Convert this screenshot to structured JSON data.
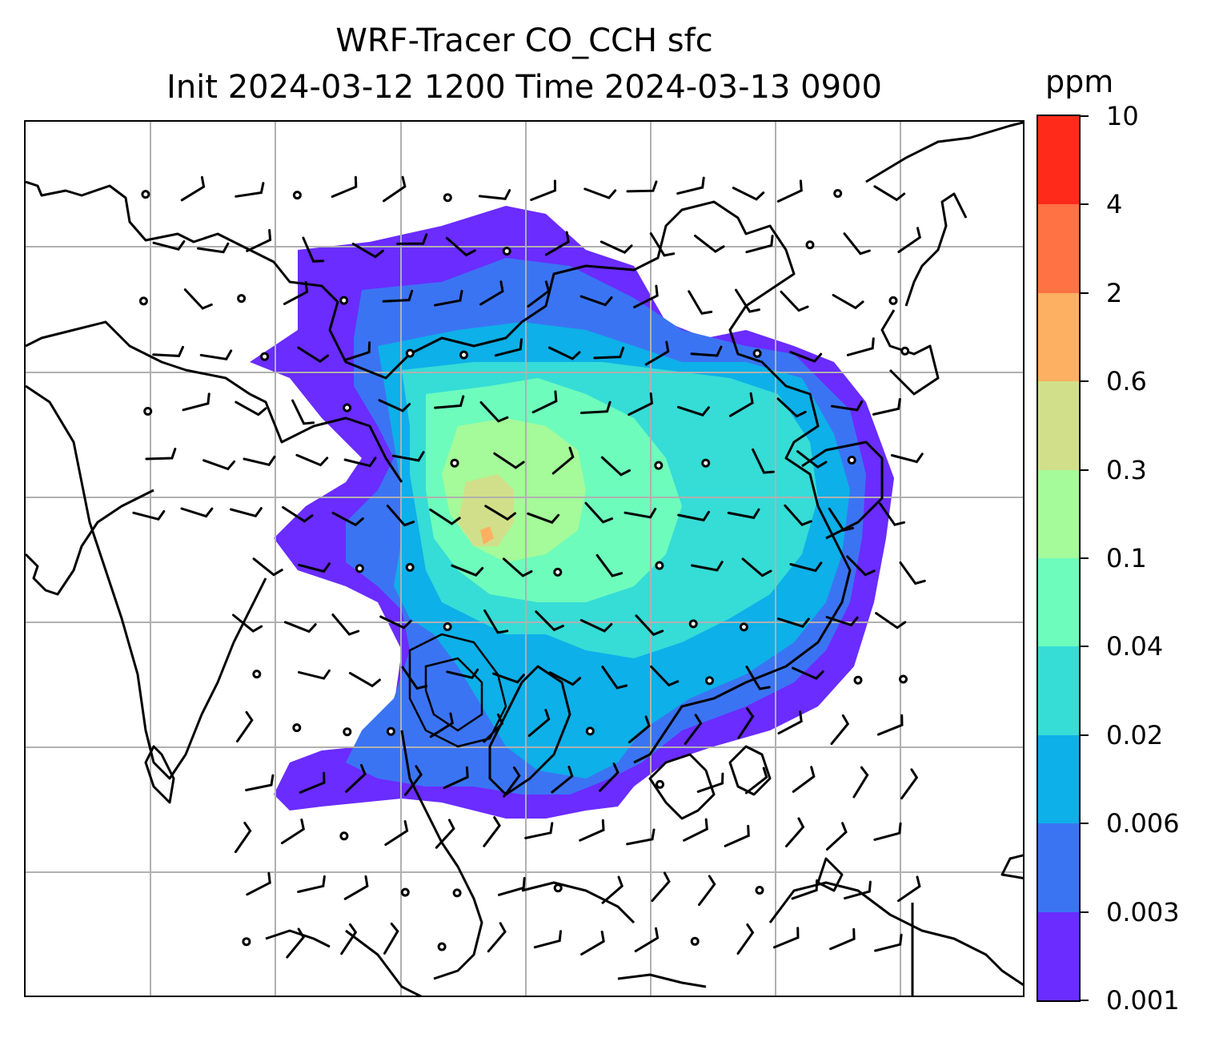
{
  "title": {
    "line1": "WRF-Tracer CO_CCH sfc",
    "line2": "Init 2024-03-12 1200 Time 2024-03-13 0900"
  },
  "colorbar": {
    "unit": "ppm",
    "levels": [
      "0.001",
      "0.003",
      "0.006",
      "0.02",
      "0.04",
      "0.1",
      "0.3",
      "0.6",
      "2",
      "4",
      "10"
    ],
    "colors": [
      "#6a2cff",
      "#3b74f3",
      "#0db0e8",
      "#36dcd6",
      "#6dfcbc",
      "#a5fa99",
      "#d2df8a",
      "#fdb062",
      "#ff7244",
      "#ff2a1a"
    ]
  },
  "map": {
    "gridlines": true,
    "grid_color": "#b0b0b0",
    "coastline_color": "#000000",
    "barb_color": "#000000",
    "features": [
      "coastlines",
      "gridlines",
      "wind-barbs",
      "calm-circles",
      "filled-contours",
      "contour-lines"
    ]
  }
}
